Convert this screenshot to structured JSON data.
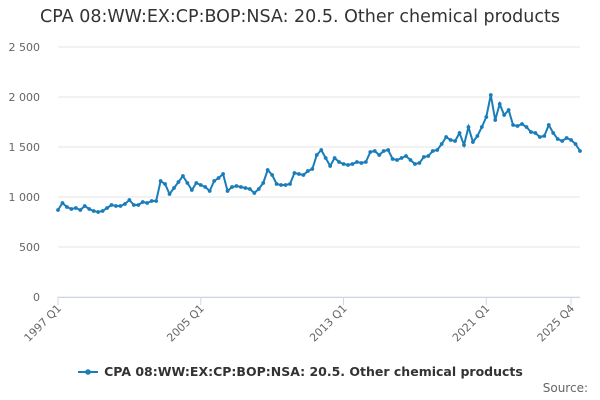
{
  "chart_data": {
    "type": "line",
    "title": "CPA 08:WW:EX:CP:BOP:NSA: 20.5. Other chemical products",
    "xlabel": "",
    "ylabel": "",
    "ylim": [
      0,
      2500
    ],
    "yticks": [
      0,
      500,
      1000,
      1500,
      2000,
      2500
    ],
    "ytick_labels": [
      "0",
      "500",
      "1 000",
      "1 500",
      "2 000",
      "2 500"
    ],
    "xticks": [
      {
        "label": "1997 Q1",
        "index": 0
      },
      {
        "label": "2005 Q1",
        "index": 32
      },
      {
        "label": "2013 Q1",
        "index": 64
      },
      {
        "label": "2021 Q1",
        "index": 96
      },
      {
        "label": "2025 Q4",
        "index": 115
      }
    ],
    "grid": true,
    "legend_position": "bottom",
    "series": [
      {
        "name": "CPA 08:WW:EX:CP:BOP:NSA: 20.5. Other chemical products",
        "color": "#1a7dba",
        "values": [
          870,
          940,
          900,
          880,
          890,
          870,
          910,
          880,
          860,
          850,
          860,
          890,
          920,
          910,
          910,
          930,
          970,
          920,
          920,
          950,
          940,
          960,
          960,
          1160,
          1130,
          1030,
          1090,
          1150,
          1210,
          1140,
          1070,
          1140,
          1120,
          1100,
          1060,
          1160,
          1190,
          1230,
          1060,
          1100,
          1110,
          1100,
          1090,
          1080,
          1040,
          1080,
          1140,
          1270,
          1220,
          1130,
          1120,
          1120,
          1130,
          1240,
          1230,
          1220,
          1260,
          1280,
          1420,
          1470,
          1390,
          1310,
          1390,
          1350,
          1330,
          1320,
          1330,
          1350,
          1340,
          1350,
          1450,
          1460,
          1420,
          1460,
          1470,
          1380,
          1370,
          1390,
          1410,
          1370,
          1330,
          1340,
          1400,
          1410,
          1460,
          1470,
          1530,
          1600,
          1570,
          1560,
          1640,
          1520,
          1700,
          1550,
          1610,
          1700,
          1800,
          2020,
          1770,
          1930,
          1820,
          1870,
          1720,
          1710,
          1730,
          1700,
          1650,
          1640,
          1600,
          1610,
          1720,
          1640,
          1580,
          1560,
          1590,
          1570,
          1530,
          1460
        ]
      }
    ]
  },
  "legend": {
    "label": "CPA 08:WW:EX:CP:BOP:NSA: 20.5. Other chemical products"
  },
  "source": {
    "label": "Source:"
  }
}
